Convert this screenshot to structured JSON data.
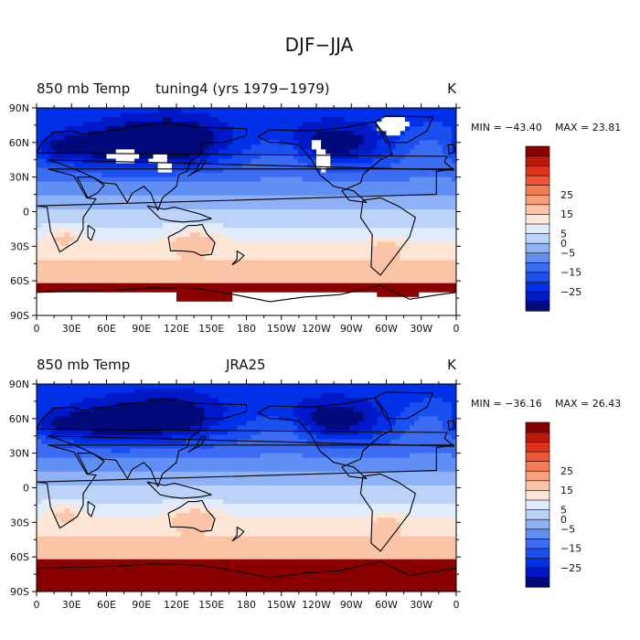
{
  "figure_title": "DJF−JJA",
  "chart_data": [
    {
      "type": "heatmap",
      "variable": "850 mb Temp",
      "dataset": "tuning4 (yrs 1979−1979)",
      "units": "K",
      "min_label": "MIN = −43.40",
      "max_label": "MAX =  23.81",
      "min": -43.4,
      "max": 23.81,
      "x_ticks": [
        "0",
        "30E",
        "60E",
        "90E",
        "120E",
        "150E",
        "180",
        "150W",
        "120W",
        "90W",
        "60W",
        "30W",
        "0"
      ],
      "y_ticks": [
        "90N",
        "60N",
        "30N",
        "0",
        "30S",
        "60S",
        "90S"
      ],
      "xlim": [
        0,
        360
      ],
      "ylim": [
        -90,
        90
      ],
      "missing_color": "#ffffff"
    },
    {
      "type": "heatmap",
      "variable": "850 mb Temp",
      "dataset": "JRA25",
      "units": "K",
      "min_label": "MIN = −36.16",
      "max_label": "MAX =  26.43",
      "min": -36.16,
      "max": 26.43,
      "x_ticks": [
        "0",
        "30E",
        "60E",
        "90E",
        "120E",
        "150E",
        "180",
        "150W",
        "120W",
        "90W",
        "60W",
        "30W",
        "0"
      ],
      "y_ticks": [
        "90N",
        "60N",
        "30N",
        "0",
        "30S",
        "60S",
        "90S"
      ],
      "xlim": [
        0,
        360
      ],
      "ylim": [
        -90,
        90
      ]
    }
  ],
  "colorbar": {
    "levels": [
      -30,
      -25,
      -20,
      -15,
      -10,
      -5,
      0,
      5,
      10,
      15,
      20,
      25,
      30
    ],
    "tick_labels": [
      "25",
      "15",
      "5",
      "0",
      "−5",
      "−15",
      "−25"
    ],
    "tick_values": [
      25,
      15,
      5,
      0,
      -5,
      -15,
      -25
    ],
    "colors": [
      "#000a7a",
      "#0019c7",
      "#0030e8",
      "#1a4ff0",
      "#3b6cf2",
      "#6090f4",
      "#8fb2f7",
      "#bcd3f8",
      "#e0ecfb",
      "#fde6d6",
      "#fbc4a6",
      "#f8a07c",
      "#f47c55",
      "#ee5634",
      "#de3318",
      "#bc1a0a",
      "#8a0000"
    ]
  }
}
